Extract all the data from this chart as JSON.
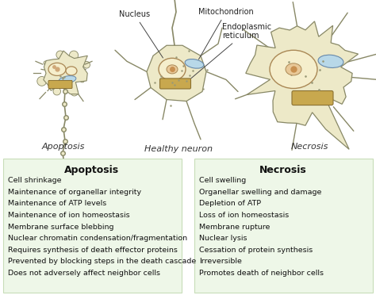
{
  "apoptosis_header": "Apoptosis",
  "necrosis_header": "Necrosis",
  "apoptosis_items": [
    "Cell shrinkage",
    "Maintenance of organellar integrity",
    "Maintenance of ATP levels",
    "Maintenance of ion homeostasis",
    "Membrane surface blebbing",
    "Nuclear chromatin condensation/fragmentation",
    "Requires synthesis of death effector proteins",
    "Prevented by blocking steps in the death cascade",
    "Does not adversely affect neighbor cells"
  ],
  "necrosis_items": [
    "Cell swelling",
    "Organellar swelling and damage",
    "Depletion of ATP",
    "Loss of ion homeostasis",
    "Membrane rupture",
    "Nuclear lysis",
    "Cessation of protein synthesis",
    "Irreversible",
    "Promotes death of neighbor cells"
  ],
  "bg_color": "#ffffff",
  "table_bg_color": "#eef7e8",
  "header_fontsize": 9,
  "item_fontsize": 6.8,
  "label_fontsize": 8,
  "annot_fontsize": 7,
  "cell_fill": "#ede9c8",
  "cell_edge": "#888866",
  "nucleus_fill": "#f5eecc",
  "nucleus_edge": "#aa8855",
  "mito_fill": "#b8d8e8",
  "mito_edge": "#6688aa",
  "er_fill": "#c8a84e",
  "er_edge": "#8a7030"
}
